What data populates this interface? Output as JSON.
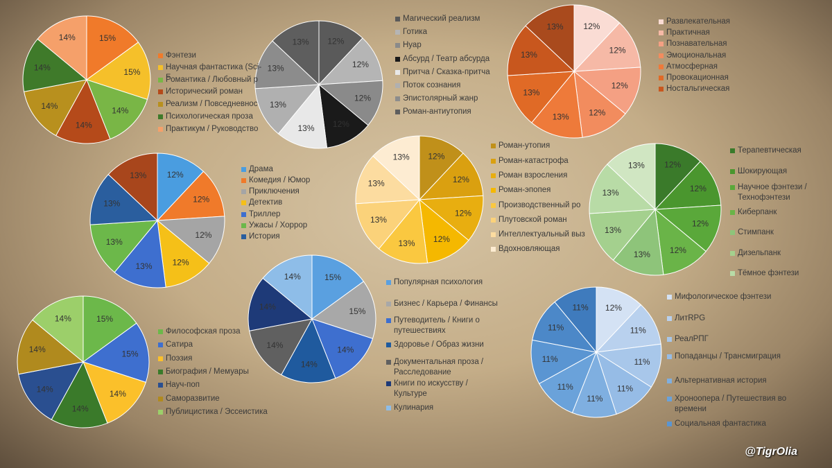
{
  "watermark": "@TigrOlia",
  "chart_data": [
    {
      "type": "pie",
      "categories": [
        "Фэнтези",
        "Научная фантастика (Sci-F",
        "Романтика / Любовный р",
        "Исторический роман",
        "Реализм / Повседневнос",
        "Психологическая проза",
        "Практикум / Руководство"
      ],
      "values": [
        15,
        15,
        14,
        14,
        14,
        14,
        14
      ],
      "value_labels": [
        "15%",
        "15%",
        "14%",
        "14%",
        "14%",
        "14%",
        "14%"
      ],
      "colors": [
        "#f07a2a",
        "#f5c02a",
        "#79b646",
        "#b54a1a",
        "#b8901e",
        "#3f7a2a",
        "#f5a06a"
      ]
    },
    {
      "type": "pie",
      "categories": [
        "Магический реализм",
        "Готика",
        "Нуар",
        "Абсурд / Театр абсурда",
        "Притча / Сказка-притча",
        "Поток сознания",
        "Эпистолярный жанр",
        "Роман-антиутопия"
      ],
      "values": [
        12,
        12,
        12,
        12,
        13,
        13,
        13,
        13
      ],
      "value_labels": [
        "12%",
        "12%",
        "12%",
        "12%",
        "13%",
        "13%",
        "13%",
        "13%"
      ],
      "colors": [
        "#5a5a5a",
        "#b5b5b5",
        "#8a8a8a",
        "#1a1a1a",
        "#e8e8e8",
        "#b0b0b0",
        "#8c8c8c",
        "#5e5e5e"
      ]
    },
    {
      "type": "pie",
      "categories": [
        "Развлекательная",
        "Практичная",
        "Познавательная",
        "Эмоциональная",
        "Атмосферная",
        "Провокационная",
        "Ностальгическая",
        null
      ],
      "values": [
        12,
        12,
        12,
        12,
        13,
        13,
        13,
        13
      ],
      "value_labels": [
        "12%",
        "12%",
        "12%",
        "12%",
        "13%",
        "13%",
        "13%",
        "13%"
      ],
      "colors": [
        "#fadcd4",
        "#f6b9a6",
        "#f4a083",
        "#f28c5e",
        "#ee7a3a",
        "#e06a26",
        "#c8571e",
        "#a94a1d"
      ]
    },
    {
      "type": "pie",
      "categories": [
        "Драма",
        "Комедия / Юмор",
        "Приключения",
        "Детектив",
        "Триллер",
        "Ужасы / Хоррор",
        "История",
        null
      ],
      "values": [
        12,
        12,
        12,
        12,
        13,
        13,
        13,
        13
      ],
      "value_labels": [
        "12%",
        "12%",
        "12%",
        "12%",
        "13%",
        "13%",
        "13%",
        "13%"
      ],
      "colors": [
        "#4a9de0",
        "#f07a2a",
        "#a5a5a5",
        "#f5c018",
        "#3e6fcf",
        "#6cb84a",
        "#2a5e9e",
        "#a8461c"
      ]
    },
    {
      "type": "pie",
      "categories": [
        "Роман-утопия",
        "Роман-катастрофа",
        "Роман взросления",
        "Роман-эпопея",
        "Производственный ро",
        "Плутовской роман",
        "Интеллектуальный выз",
        "Вдохновляющая"
      ],
      "values": [
        12,
        12,
        12,
        12,
        13,
        13,
        13,
        13
      ],
      "value_labels": [
        "12%",
        "12%",
        "12%",
        "12%",
        "13%",
        "13%",
        "13%",
        "13%"
      ],
      "colors": [
        "#c0901a",
        "#daa010",
        "#e8ae10",
        "#f5b800",
        "#fac840",
        "#fbd27a",
        "#fcdca0",
        "#fdecd2"
      ]
    },
    {
      "type": "pie",
      "categories": [
        "Терапевтическая",
        "Шокирующая",
        "Научное фэнтези / Технофэнтези",
        "Киберпанк",
        "Стимпанк",
        "Дизельпанк",
        "Тёмное фэнтези",
        null
      ],
      "values": [
        12,
        12,
        12,
        12,
        13,
        13,
        13,
        13
      ],
      "value_labels": [
        "12%",
        "12%",
        "12%",
        "12%",
        "13%",
        "13%",
        "13%",
        "13%"
      ],
      "colors": [
        "#3a7a2a",
        "#4a962e",
        "#5aa83a",
        "#6ab448",
        "#8ec47a",
        "#a4d08e",
        "#b8dba6",
        "#d0e6c2"
      ]
    },
    {
      "type": "pie",
      "categories": [
        "Философская проза",
        "Сатира",
        "Поэзия",
        "Биография / Мемуары",
        "Науч-поп",
        "Саморазвитие",
        "Публицистика / Эссеистика"
      ],
      "values": [
        15,
        15,
        14,
        14,
        14,
        14,
        14
      ],
      "value_labels": [
        "15%",
        "15%",
        "14%",
        "14%",
        "14%",
        "14%",
        "14%"
      ],
      "colors": [
        "#6cb84a",
        "#3e6fcf",
        "#fbc02a",
        "#3a7a2a",
        "#2a4f90",
        "#b08a1e",
        "#9ccf6a"
      ]
    },
    {
      "type": "pie",
      "categories": [
        "Популярная психология",
        "Бизнес / Карьера / Финансы",
        "Путеводитель / Книги о путешествиях",
        "Здоровье / Образ жизни",
        "Документальная проза / Расследование",
        "Книги по искусству / Культуре",
        "Кулинария"
      ],
      "values": [
        15,
        15,
        14,
        14,
        14,
        14,
        14
      ],
      "value_labels": [
        "15%",
        "15%",
        "14%",
        "14%",
        "14%",
        "14%",
        "14%"
      ],
      "colors": [
        "#5aa0e0",
        "#a8a8a8",
        "#3e6fcf",
        "#1f5a9e",
        "#606060",
        "#1e3a78",
        "#8ebde8"
      ]
    },
    {
      "type": "pie",
      "categories": [
        "Мифологическое фэнтези",
        "ЛитRPG",
        "РеалРПГ",
        "Попаданцы / Трансмиграция",
        "Альтернативная история",
        "Хроноопера / Путешествия во времени",
        "Социальная фантастика",
        null,
        null
      ],
      "values": [
        12,
        11,
        11,
        11,
        11,
        11,
        11,
        11,
        11
      ],
      "value_labels": [
        "12%",
        "11%",
        "11%",
        "11%",
        "11%",
        "11%",
        "11%",
        "11%",
        "11%"
      ],
      "colors": [
        "#d4e2f4",
        "#b9d1ee",
        "#a8c7ea",
        "#96bce6",
        "#7fafe0",
        "#6aa2da",
        "#5a95d2",
        "#4c88c8",
        "#3f7bbd"
      ]
    }
  ]
}
